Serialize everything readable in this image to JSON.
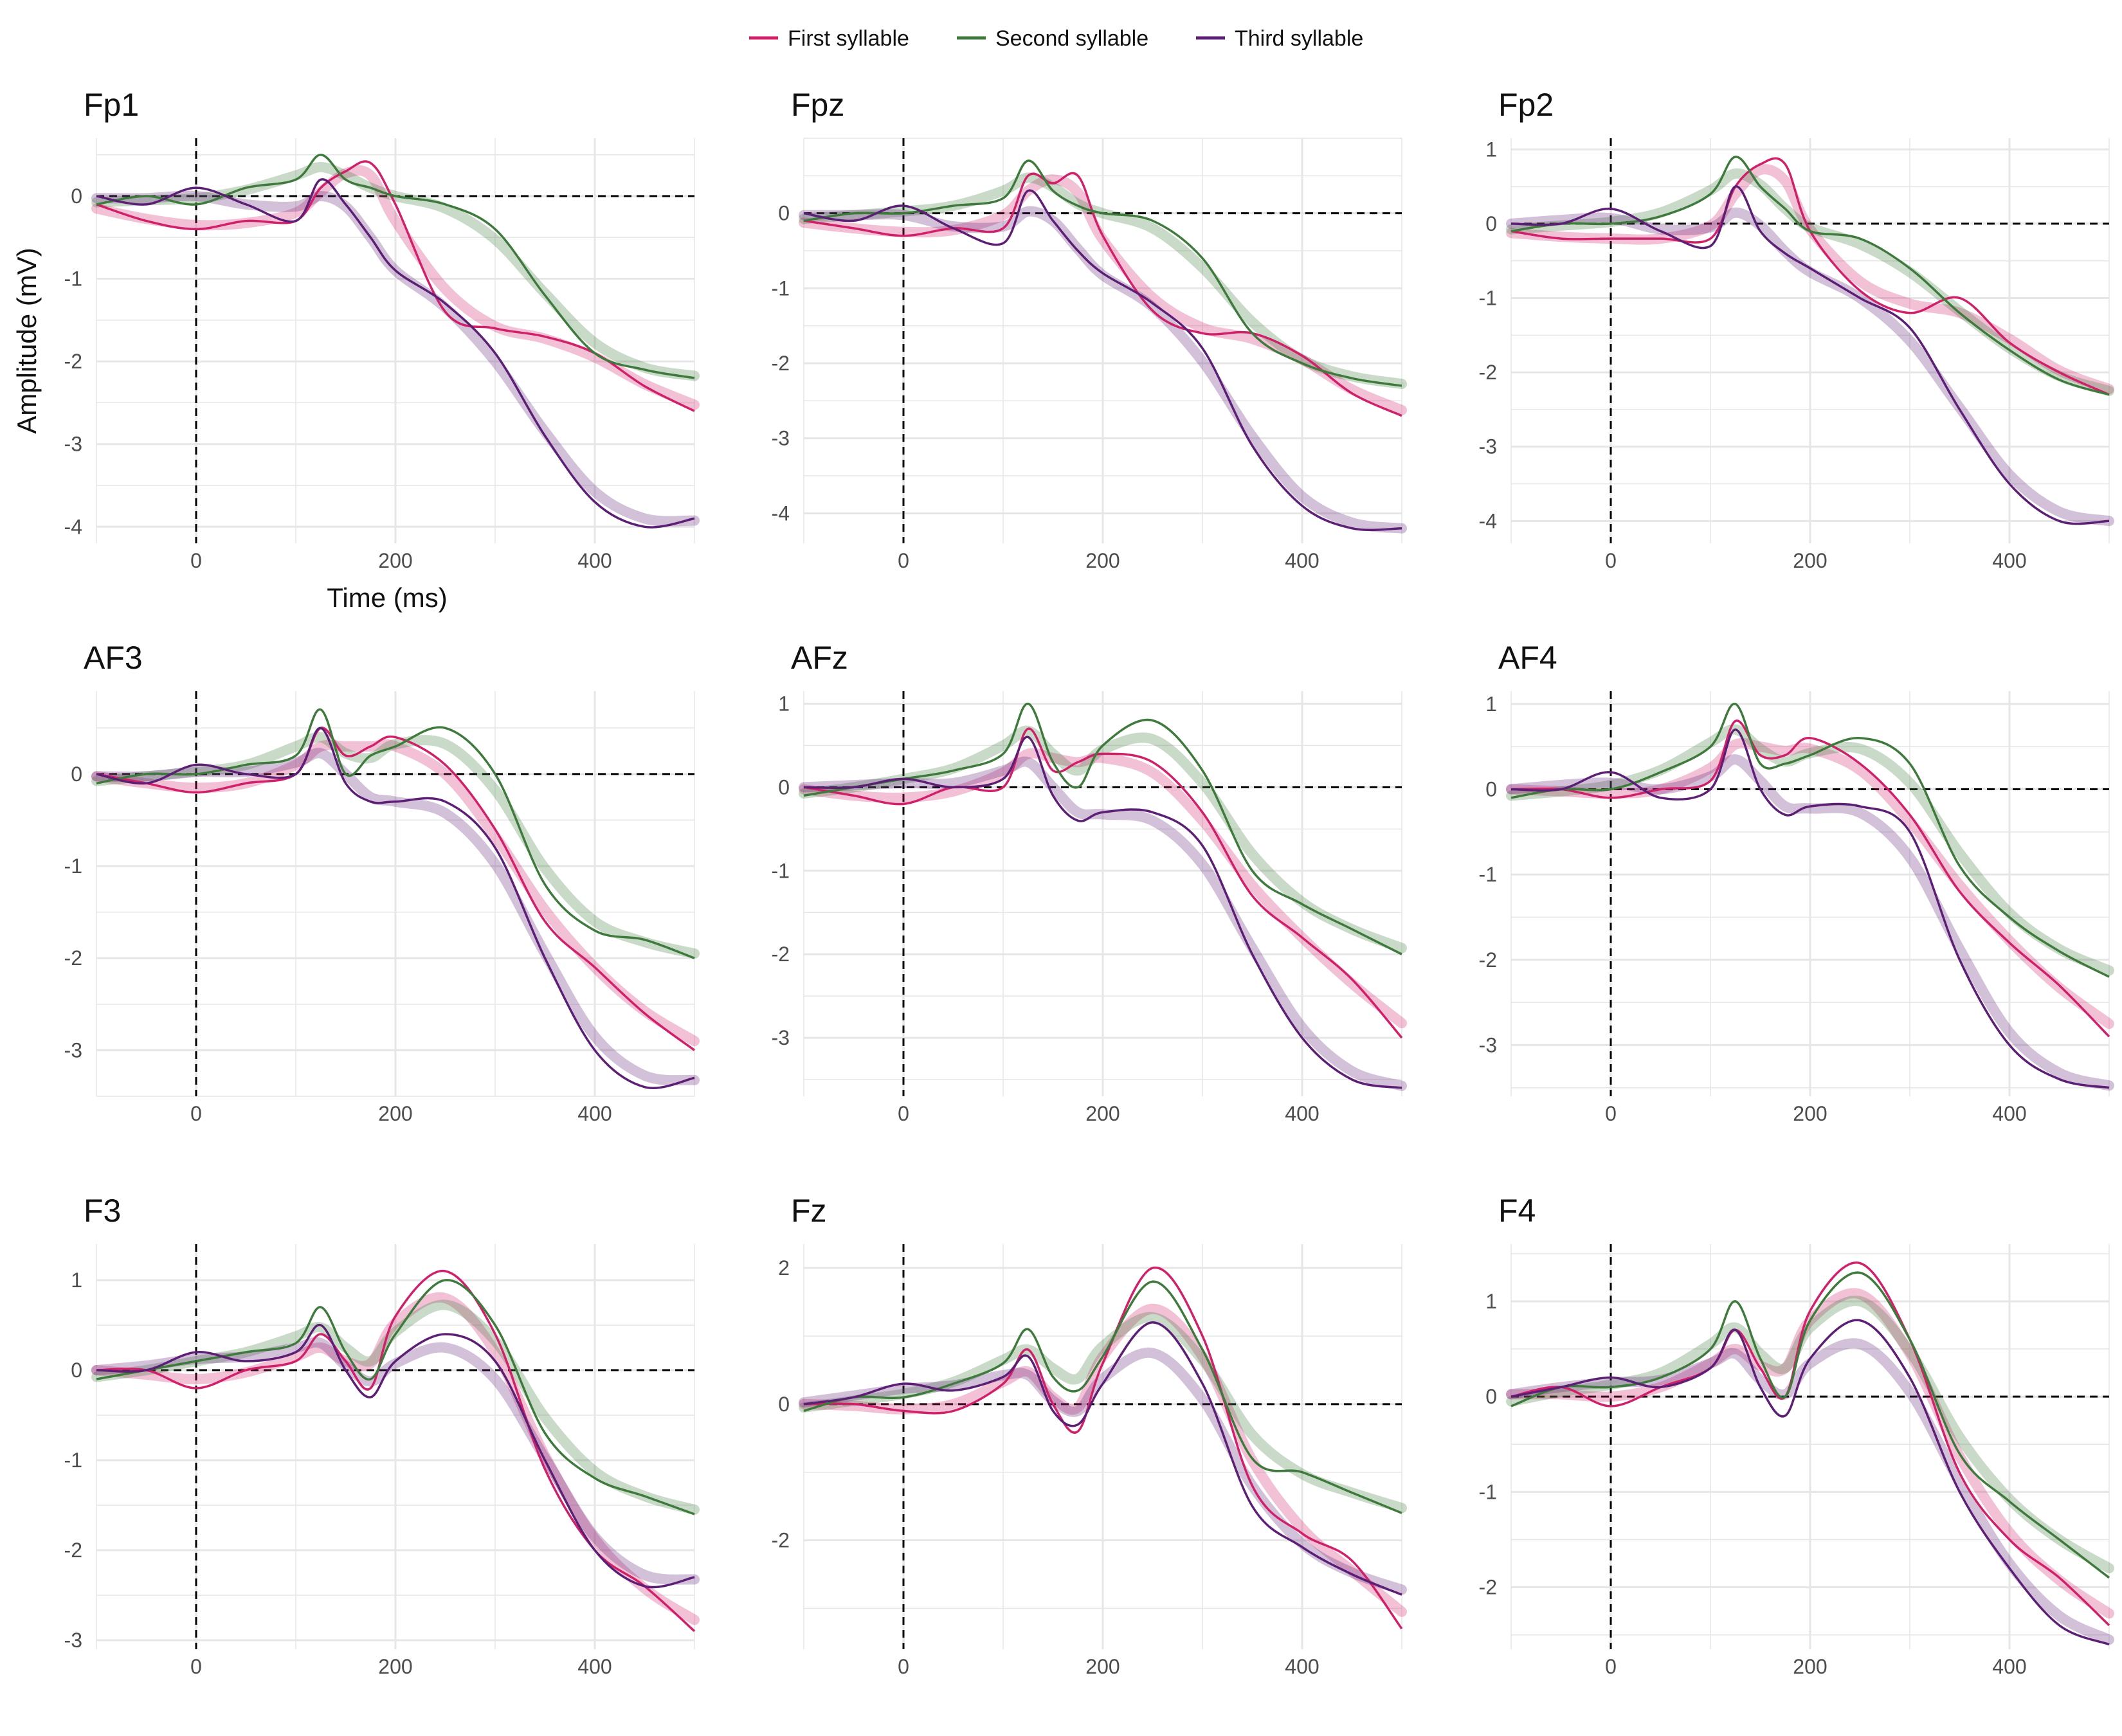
{
  "colors": {
    "first": "#d0206a",
    "second": "#3f7a3d",
    "third": "#5c1f75",
    "grid": "#e6e6e6"
  },
  "legend": {
    "first": "First syllable",
    "second": "Second syllable",
    "third": "Third syllable"
  },
  "axes": {
    "xlabel": "Time (ms)",
    "ylabel": "Amplitude (mV)",
    "xlim": [
      -100,
      500
    ],
    "xticks": [
      0,
      200,
      400
    ]
  },
  "chart_data": [
    {
      "type": "line",
      "title": "Fp1",
      "ylim": [
        -4.2,
        0.7
      ],
      "yticks": [
        0,
        -1,
        -2,
        -3,
        -4
      ],
      "x": [
        -100,
        -50,
        0,
        50,
        100,
        125,
        150,
        175,
        200,
        250,
        300,
        350,
        400,
        450,
        500
      ],
      "series": [
        {
          "name": "First syllable",
          "values": [
            -0.1,
            -0.3,
            -0.4,
            -0.3,
            -0.3,
            0.1,
            0.3,
            0.4,
            -0.1,
            -1.4,
            -1.6,
            -1.7,
            -1.9,
            -2.3,
            -2.6
          ]
        },
        {
          "name": "Second syllable",
          "values": [
            -0.1,
            0.0,
            -0.1,
            0.1,
            0.2,
            0.5,
            0.2,
            0.1,
            0.0,
            -0.1,
            -0.4,
            -1.2,
            -1.9,
            -2.1,
            -2.2
          ]
        },
        {
          "name": "Third syllable",
          "values": [
            0.0,
            -0.1,
            0.1,
            -0.1,
            -0.3,
            0.2,
            -0.1,
            -0.5,
            -0.9,
            -1.3,
            -1.9,
            -2.9,
            -3.7,
            -4.0,
            -3.9
          ]
        }
      ]
    },
    {
      "type": "line",
      "title": "Fpz",
      "ylim": [
        -4.4,
        1.0
      ],
      "yticks": [
        0,
        -1,
        -2,
        -3,
        -4
      ],
      "x": [
        -100,
        -50,
        0,
        50,
        100,
        125,
        150,
        175,
        200,
        250,
        300,
        350,
        400,
        450,
        500
      ],
      "series": [
        {
          "name": "First syllable",
          "values": [
            -0.1,
            -0.2,
            -0.3,
            -0.2,
            -0.2,
            0.5,
            0.4,
            0.5,
            -0.3,
            -1.3,
            -1.6,
            -1.6,
            -1.9,
            -2.4,
            -2.7
          ]
        },
        {
          "name": "Second syllable",
          "values": [
            -0.1,
            0.0,
            0.0,
            0.1,
            0.2,
            0.7,
            0.3,
            0.1,
            0.0,
            -0.1,
            -0.6,
            -1.6,
            -2.0,
            -2.2,
            -2.3
          ]
        },
        {
          "name": "Third syllable",
          "values": [
            0.0,
            -0.1,
            0.1,
            -0.2,
            -0.4,
            0.3,
            -0.1,
            -0.5,
            -0.8,
            -1.2,
            -1.8,
            -3.1,
            -3.9,
            -4.2,
            -4.2
          ]
        }
      ]
    },
    {
      "type": "line",
      "title": "Fp2",
      "ylim": [
        -4.3,
        1.15
      ],
      "yticks": [
        1,
        0,
        -1,
        -2,
        -3,
        -4
      ],
      "x": [
        -100,
        -50,
        0,
        50,
        100,
        125,
        150,
        175,
        200,
        250,
        300,
        350,
        400,
        450,
        500
      ],
      "series": [
        {
          "name": "First syllable",
          "values": [
            -0.1,
            -0.2,
            -0.2,
            -0.2,
            -0.2,
            0.5,
            0.8,
            0.8,
            -0.1,
            -0.9,
            -1.2,
            -1.0,
            -1.6,
            -2.0,
            -2.3
          ]
        },
        {
          "name": "Second syllable",
          "values": [
            -0.1,
            0.0,
            0.0,
            0.1,
            0.4,
            0.9,
            0.5,
            0.2,
            -0.1,
            -0.2,
            -0.6,
            -1.2,
            -1.7,
            -2.1,
            -2.3
          ]
        },
        {
          "name": "Third syllable",
          "values": [
            0.0,
            0.0,
            0.2,
            -0.1,
            -0.3,
            0.5,
            -0.1,
            -0.4,
            -0.6,
            -1.0,
            -1.4,
            -2.5,
            -3.5,
            -4.0,
            -4.0
          ]
        }
      ]
    },
    {
      "type": "line",
      "title": "AF3",
      "ylim": [
        -3.5,
        0.9
      ],
      "yticks": [
        0,
        -1,
        -2,
        -3
      ],
      "x": [
        -100,
        -50,
        0,
        50,
        100,
        125,
        150,
        175,
        200,
        250,
        300,
        350,
        400,
        450,
        500
      ],
      "series": [
        {
          "name": "First syllable",
          "values": [
            0.0,
            -0.1,
            -0.2,
            -0.1,
            0.0,
            0.5,
            0.2,
            0.3,
            0.4,
            0.1,
            -0.6,
            -1.6,
            -2.1,
            -2.6,
            -3.0
          ]
        },
        {
          "name": "Second syllable",
          "values": [
            -0.1,
            0.0,
            0.0,
            0.1,
            0.2,
            0.7,
            0.0,
            0.2,
            0.3,
            0.5,
            0.0,
            -1.2,
            -1.7,
            -1.8,
            -2.0
          ]
        },
        {
          "name": "Third syllable",
          "values": [
            0.0,
            -0.1,
            0.1,
            0.0,
            0.0,
            0.5,
            -0.1,
            -0.3,
            -0.3,
            -0.3,
            -0.8,
            -2.0,
            -3.0,
            -3.4,
            -3.3
          ]
        }
      ]
    },
    {
      "type": "line",
      "title": "AFz",
      "ylim": [
        -3.7,
        1.15
      ],
      "yticks": [
        1,
        0,
        -1,
        -2,
        -3
      ],
      "x": [
        -100,
        -50,
        0,
        50,
        100,
        125,
        150,
        175,
        200,
        250,
        300,
        350,
        400,
        450,
        500
      ],
      "series": [
        {
          "name": "First syllable",
          "values": [
            0.0,
            -0.1,
            -0.2,
            0.0,
            0.0,
            0.7,
            0.2,
            0.3,
            0.4,
            0.3,
            -0.3,
            -1.3,
            -1.8,
            -2.3,
            -3.0
          ]
        },
        {
          "name": "Second syllable",
          "values": [
            -0.1,
            0.0,
            0.1,
            0.2,
            0.4,
            1.0,
            0.3,
            0.0,
            0.5,
            0.8,
            0.2,
            -1.0,
            -1.4,
            -1.7,
            -2.0
          ]
        },
        {
          "name": "Third syllable",
          "values": [
            0.0,
            0.0,
            0.1,
            0.0,
            0.1,
            0.6,
            -0.1,
            -0.4,
            -0.3,
            -0.3,
            -0.7,
            -2.0,
            -3.0,
            -3.5,
            -3.6
          ]
        }
      ]
    },
    {
      "type": "line",
      "title": "AF4",
      "ylim": [
        -3.6,
        1.15
      ],
      "yticks": [
        1,
        0,
        -1,
        -2,
        -3
      ],
      "x": [
        -100,
        -50,
        0,
        50,
        100,
        125,
        150,
        175,
        200,
        250,
        300,
        350,
        400,
        450,
        500
      ],
      "series": [
        {
          "name": "First syllable",
          "values": [
            0.0,
            0.0,
            -0.1,
            0.0,
            0.1,
            0.8,
            0.4,
            0.4,
            0.6,
            0.3,
            -0.3,
            -1.2,
            -1.8,
            -2.3,
            -2.9
          ]
        },
        {
          "name": "Second syllable",
          "values": [
            -0.1,
            0.0,
            0.0,
            0.2,
            0.5,
            1.0,
            0.3,
            0.3,
            0.4,
            0.6,
            0.3,
            -0.9,
            -1.5,
            -1.9,
            -2.2
          ]
        },
        {
          "name": "Third syllable",
          "values": [
            0.0,
            0.0,
            0.2,
            -0.1,
            0.0,
            0.7,
            0.0,
            -0.3,
            -0.2,
            -0.2,
            -0.5,
            -2.0,
            -3.0,
            -3.4,
            -3.5
          ]
        }
      ]
    },
    {
      "type": "line",
      "title": "F3",
      "ylim": [
        -3.1,
        1.4
      ],
      "yticks": [
        1,
        0,
        -1,
        -2,
        -3
      ],
      "x": [
        -100,
        -50,
        0,
        50,
        100,
        125,
        150,
        175,
        200,
        250,
        300,
        350,
        400,
        450,
        500
      ],
      "series": [
        {
          "name": "First syllable",
          "values": [
            0.0,
            0.0,
            -0.2,
            0.0,
            0.1,
            0.4,
            0.1,
            -0.2,
            0.6,
            1.1,
            0.4,
            -1.1,
            -2.0,
            -2.4,
            -2.9
          ]
        },
        {
          "name": "Second syllable",
          "values": [
            -0.1,
            0.0,
            0.1,
            0.2,
            0.3,
            0.7,
            0.2,
            -0.1,
            0.4,
            1.0,
            0.5,
            -0.7,
            -1.2,
            -1.4,
            -1.6
          ]
        },
        {
          "name": "Third syllable",
          "values": [
            0.0,
            0.0,
            0.2,
            0.1,
            0.2,
            0.5,
            0.0,
            -0.3,
            0.1,
            0.4,
            0.1,
            -1.0,
            -2.0,
            -2.4,
            -2.3
          ]
        }
      ]
    },
    {
      "type": "line",
      "title": "Fz",
      "ylim": [
        -3.6,
        2.35
      ],
      "yticks": [
        2,
        0,
        -2
      ],
      "x": [
        -100,
        -50,
        0,
        50,
        100,
        125,
        150,
        175,
        200,
        250,
        300,
        350,
        400,
        450,
        500
      ],
      "series": [
        {
          "name": "First syllable",
          "values": [
            0.0,
            0.0,
            -0.1,
            -0.1,
            0.3,
            0.8,
            0.0,
            -0.4,
            0.6,
            2.0,
            1.0,
            -1.2,
            -1.9,
            -2.3,
            -3.3
          ]
        },
        {
          "name": "Second syllable",
          "values": [
            -0.1,
            0.1,
            0.1,
            0.3,
            0.6,
            1.1,
            0.4,
            0.2,
            0.7,
            1.8,
            0.8,
            -0.8,
            -1.0,
            -1.3,
            -1.6
          ]
        },
        {
          "name": "Third syllable",
          "values": [
            0.0,
            0.1,
            0.3,
            0.2,
            0.4,
            0.7,
            -0.1,
            -0.3,
            0.3,
            1.2,
            0.3,
            -1.5,
            -2.1,
            -2.5,
            -2.8
          ]
        }
      ]
    },
    {
      "type": "line",
      "title": "F4",
      "ylim": [
        -2.65,
        1.6
      ],
      "yticks": [
        1,
        0,
        -1,
        -2
      ],
      "x": [
        -100,
        -50,
        0,
        50,
        100,
        125,
        150,
        175,
        200,
        250,
        300,
        350,
        400,
        450,
        500
      ],
      "series": [
        {
          "name": "First syllable",
          "values": [
            0.0,
            0.1,
            -0.1,
            0.1,
            0.3,
            0.7,
            0.3,
            0.0,
            0.9,
            1.4,
            0.6,
            -0.8,
            -1.5,
            -1.9,
            -2.4
          ]
        },
        {
          "name": "Second syllable",
          "values": [
            -0.1,
            0.1,
            0.1,
            0.2,
            0.5,
            1.0,
            0.4,
            0.0,
            0.8,
            1.3,
            0.6,
            -0.6,
            -1.1,
            -1.5,
            -1.9
          ]
        },
        {
          "name": "Third syllable",
          "values": [
            0.0,
            0.1,
            0.2,
            0.1,
            0.3,
            0.7,
            0.1,
            -0.2,
            0.4,
            0.8,
            0.2,
            -1.0,
            -1.8,
            -2.4,
            -2.6
          ]
        }
      ]
    }
  ]
}
